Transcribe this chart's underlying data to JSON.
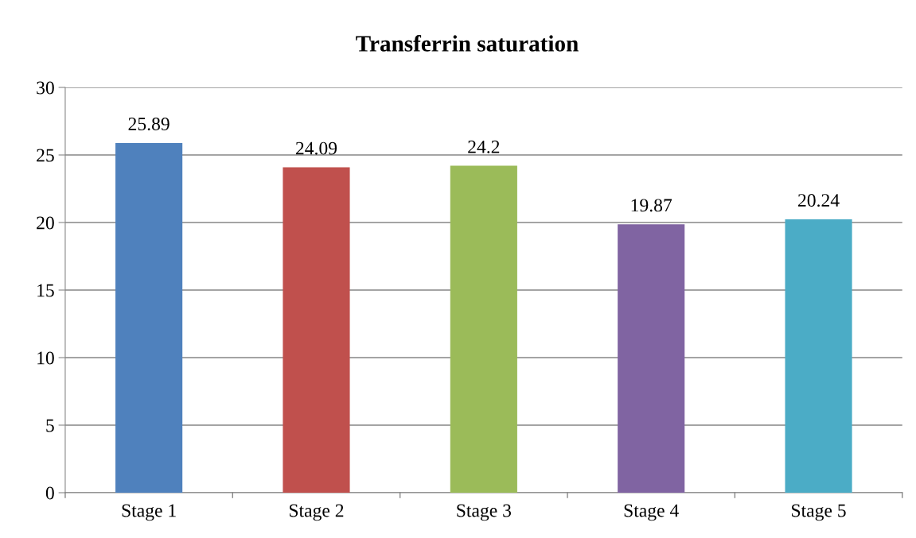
{
  "chart_data": {
    "type": "bar",
    "title": "Transferrin saturation",
    "categories": [
      "Stage 1",
      "Stage 2",
      "Stage 3",
      "Stage 4",
      "Stage 5"
    ],
    "values": [
      25.89,
      24.09,
      24.2,
      19.87,
      20.24
    ],
    "colors": [
      "#4f81bd",
      "#c0504d",
      "#9bbb59",
      "#8064a2",
      "#4bacc6"
    ],
    "ylim": [
      0,
      30
    ],
    "yticks": [
      0,
      5,
      10,
      15,
      20,
      25,
      30
    ],
    "grid": "y",
    "data_labels": true
  }
}
